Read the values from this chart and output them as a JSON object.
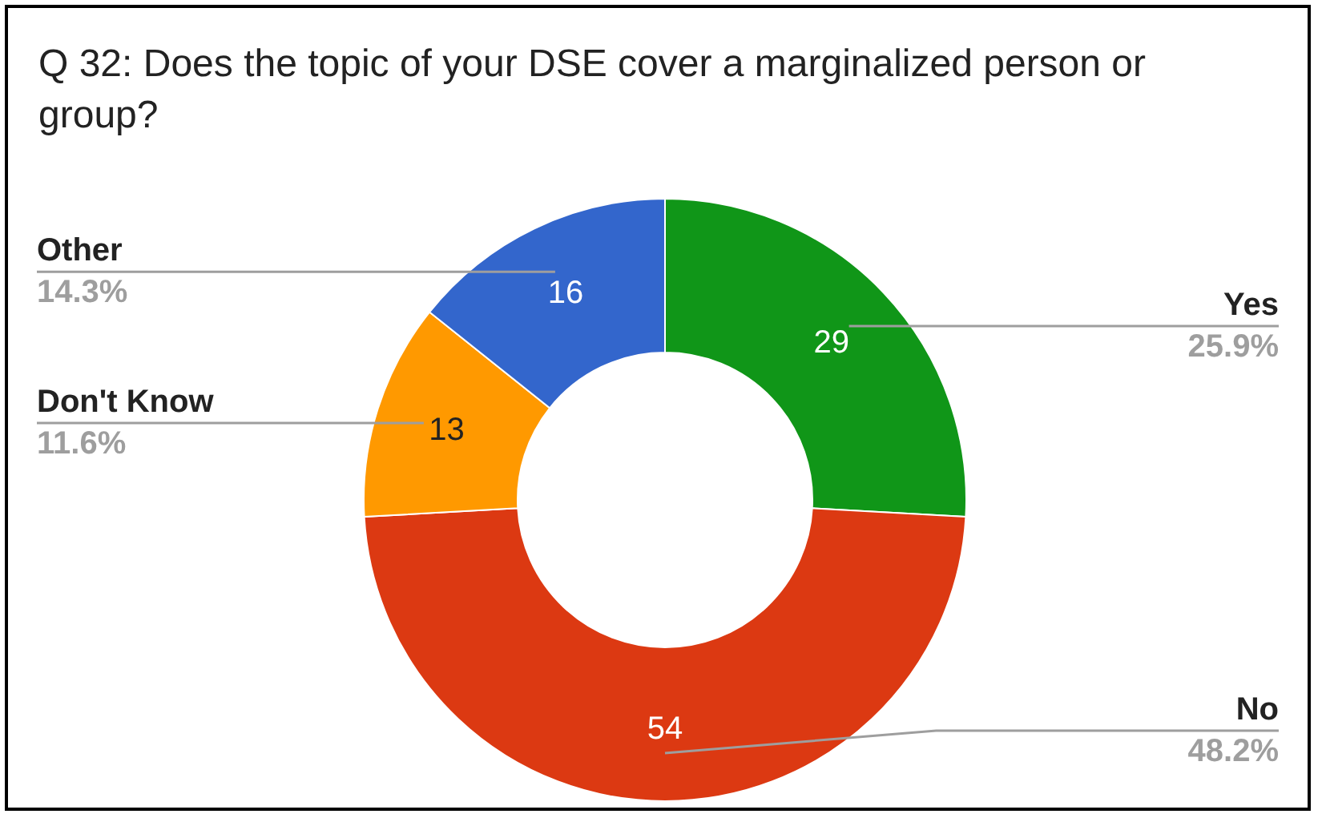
{
  "chart_data": {
    "type": "donut",
    "title": "Q 32: Does the topic of your DSE cover a marginalized person or group?",
    "categories": [
      "Yes",
      "No",
      "Don't Know",
      "Other"
    ],
    "values": [
      29,
      54,
      13,
      16
    ],
    "colors": [
      "#109618",
      "#dc3912",
      "#ff9900",
      "#3366cc"
    ],
    "annotations": [
      "25.9%",
      "48.2%",
      "11.6%",
      "14.3%"
    ],
    "data_labels": true
  }
}
